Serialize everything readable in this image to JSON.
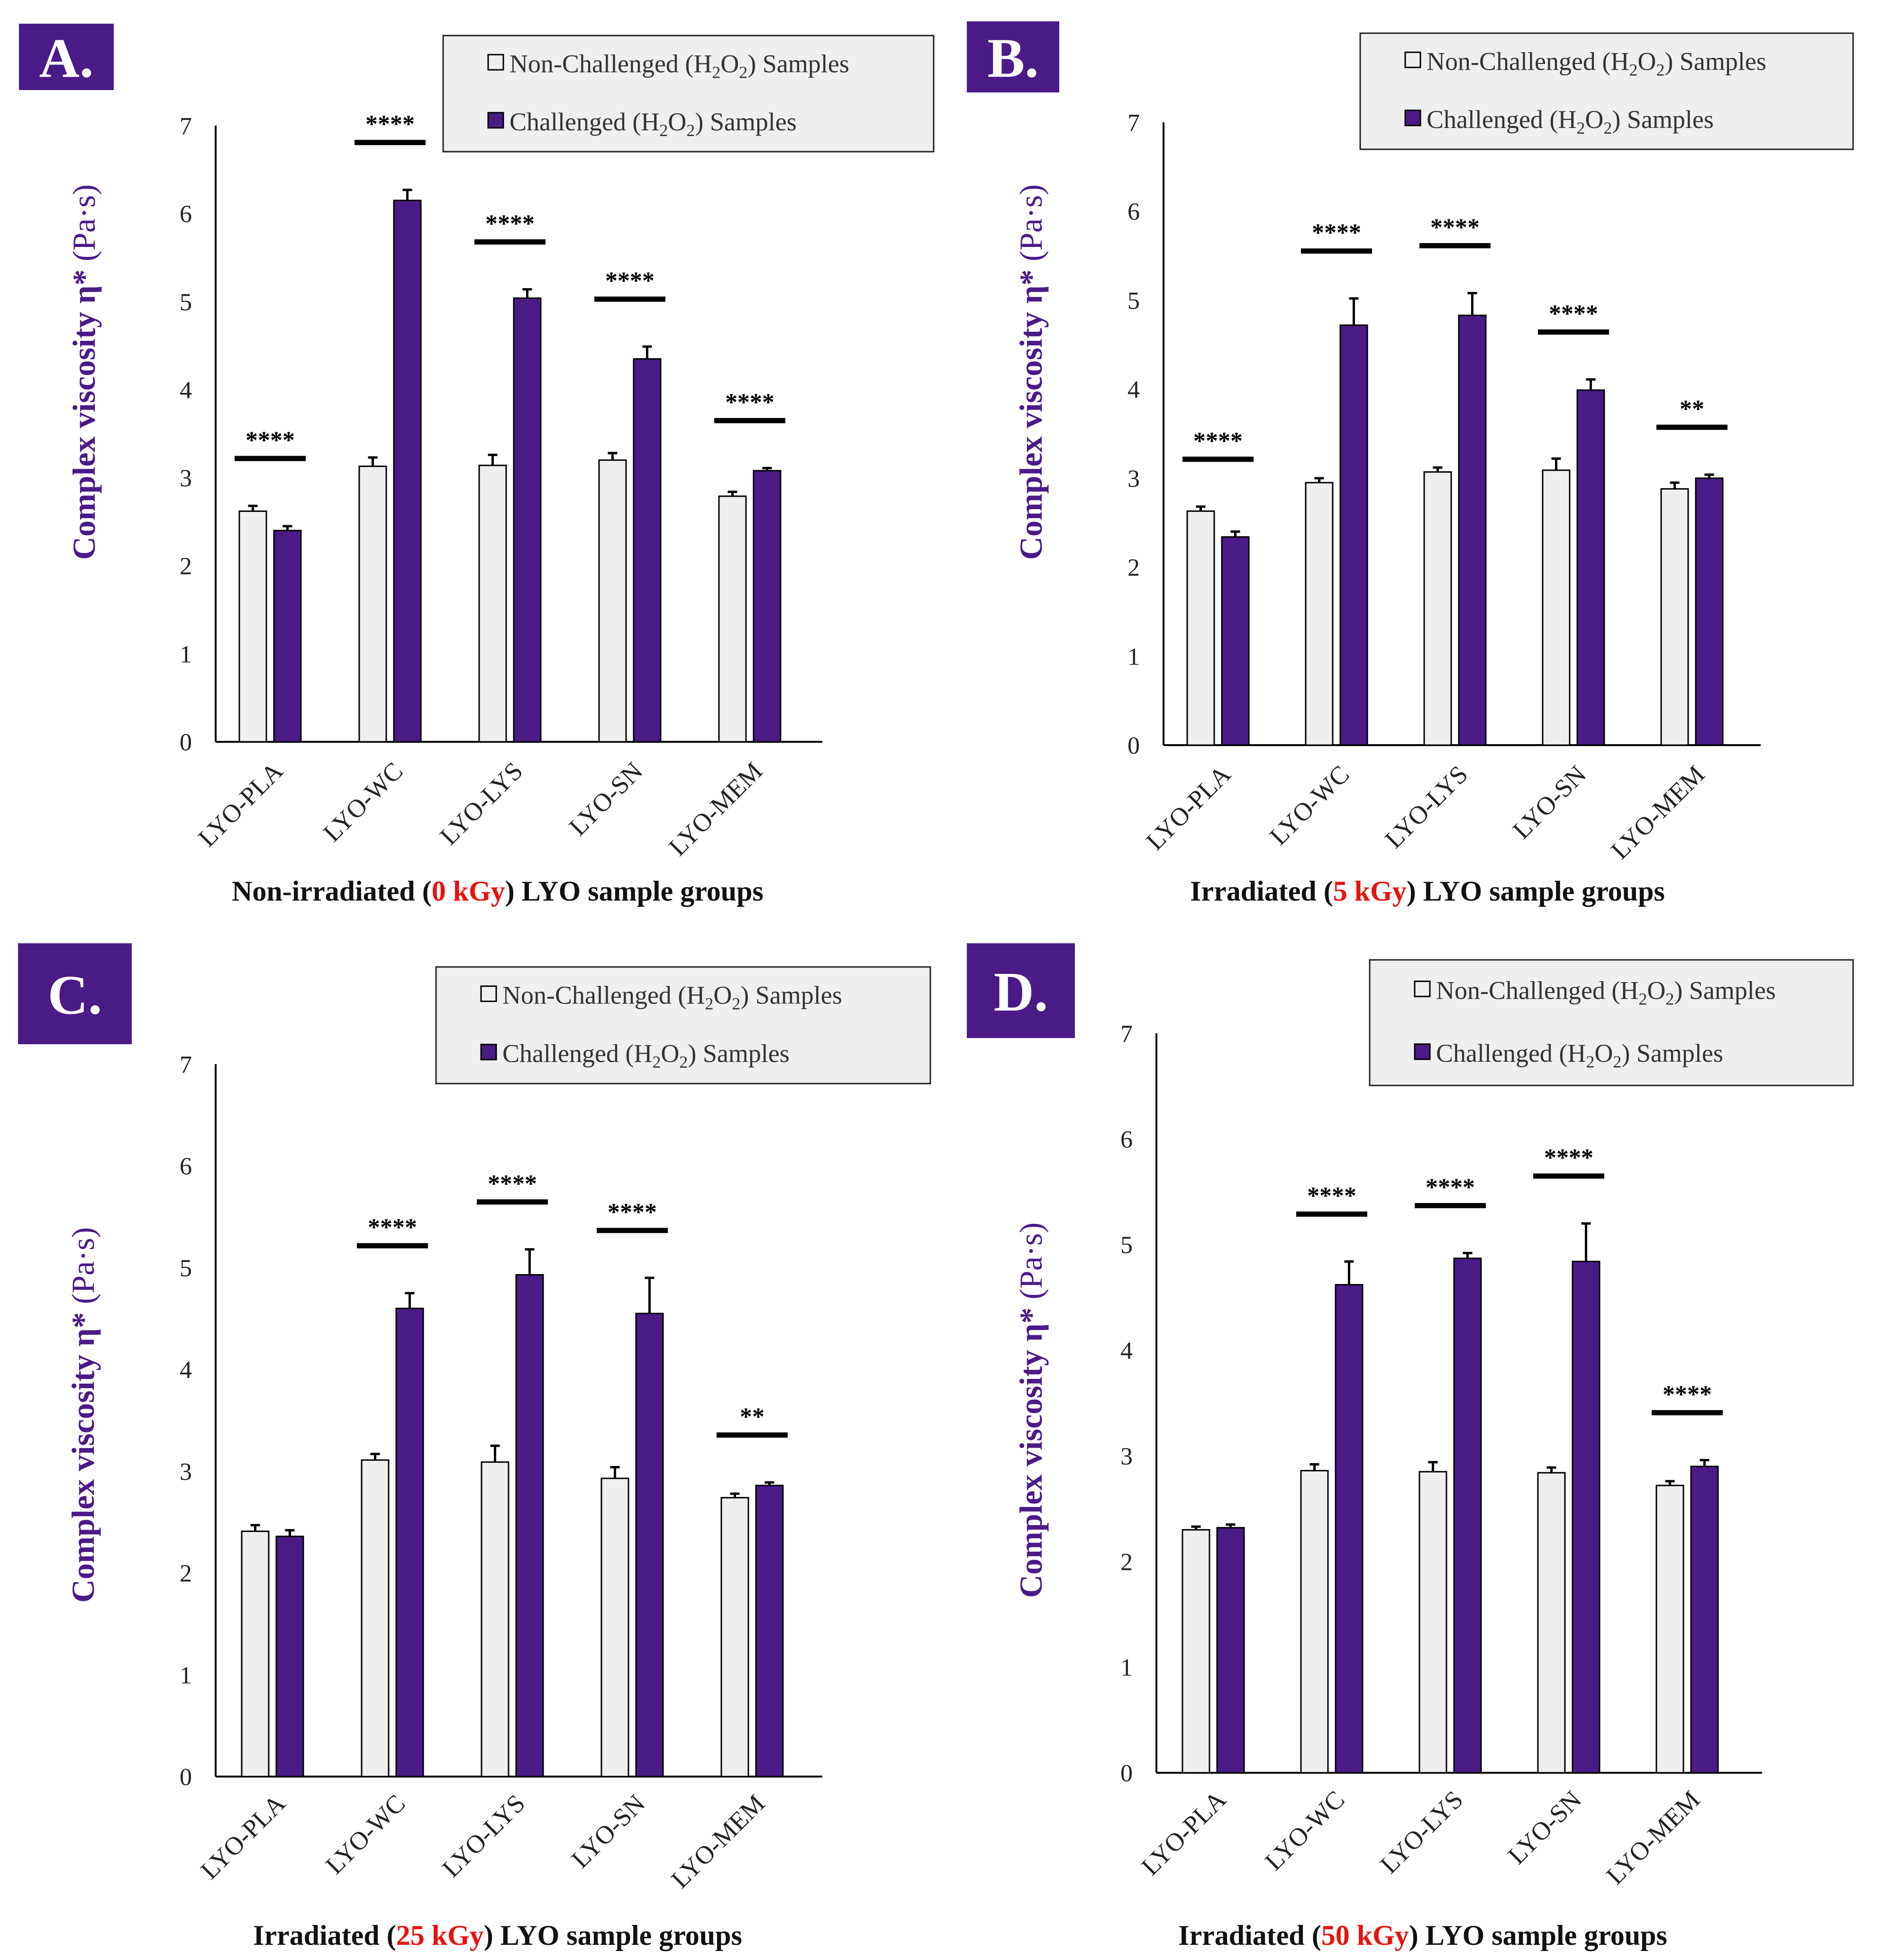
{
  "colors": {
    "non_challenged": "#EFEFEF",
    "challenged": "#4A1B87",
    "panel_badge": "#4A1B87",
    "ylabel": "#4A1B87",
    "dose_highlight": "#E8120C",
    "legend_bg": "#EFEFEF"
  },
  "chart_data": [
    {
      "type": "bar",
      "panel_label": "A.",
      "categories": [
        "LYO-PLA",
        "LYO-WC",
        "LYO-LYS",
        "LYO-SN",
        "LYO-MEM"
      ],
      "series": [
        {
          "name": "Non-Challenged (H2O2) Samples",
          "values": [
            2.62,
            3.13,
            3.14,
            3.2,
            2.79
          ],
          "errors": [
            0.06,
            0.1,
            0.12,
            0.08,
            0.05
          ]
        },
        {
          "name": "Challenged (H2O2) Samples",
          "values": [
            2.4,
            6.15,
            5.04,
            4.35,
            3.08
          ],
          "errors": [
            0.05,
            0.12,
            0.1,
            0.14,
            0.03
          ]
        }
      ],
      "significance": [
        "****",
        "****",
        "****",
        "****",
        "****"
      ],
      "ylabel_main": "Complex viscosity η*",
      "ylabel_unit": "(Pa·s)",
      "xlabel": {
        "prefix": "Non-irradiated (",
        "dose": "0 kGy",
        "suffix": ") LYO sample groups"
      },
      "ylim": [
        0,
        7
      ],
      "yticks": [
        0,
        1,
        2,
        3,
        4,
        5,
        6,
        7
      ],
      "legend": {
        "non_challenged": "Non-Challenged",
        "challenged": "Challenged",
        "formula": "(H2O2)",
        "suffix": "Samples",
        "position": "top-right"
      }
    },
    {
      "type": "bar",
      "panel_label": "B.",
      "categories": [
        "LYO-PLA",
        "LYO-WC",
        "LYO-LYS",
        "LYO-SN",
        "LYO-MEM"
      ],
      "series": [
        {
          "name": "Non-Challenged (H2O2) Samples",
          "values": [
            2.63,
            2.95,
            3.07,
            3.09,
            2.88
          ],
          "errors": [
            0.05,
            0.05,
            0.05,
            0.13,
            0.07
          ]
        },
        {
          "name": "Challenged (H2O2) Samples",
          "values": [
            2.34,
            4.72,
            4.83,
            3.99,
            3.0
          ],
          "errors": [
            0.06,
            0.3,
            0.25,
            0.12,
            0.04
          ]
        }
      ],
      "significance": [
        "****",
        "****",
        "****",
        "****",
        "**"
      ],
      "ylabel_main": "Complex viscosity η*",
      "ylabel_unit": "(Pa·s)",
      "xlabel": {
        "prefix": "Irradiated (",
        "dose": "5 kGy",
        "suffix": ") LYO sample groups"
      },
      "ylim": [
        0,
        7
      ],
      "yticks": [
        0,
        1,
        2,
        3,
        4,
        5,
        6,
        7
      ],
      "legend": {
        "non_challenged": "Non-Challenged",
        "challenged": "Challenged",
        "formula": "(H2O2)",
        "suffix": "Samples",
        "position": "top-right"
      }
    },
    {
      "type": "bar",
      "panel_label": "C.",
      "categories": [
        "LYO-PLA",
        "LYO-WC",
        "LYO-LYS",
        "LYO-SN",
        "LYO-MEM"
      ],
      "series": [
        {
          "name": "Non-Challenged (H2O2) Samples",
          "values": [
            2.41,
            3.11,
            3.09,
            2.93,
            2.74
          ],
          "errors": [
            0.06,
            0.06,
            0.16,
            0.11,
            0.04
          ]
        },
        {
          "name": "Challenged (H2O2) Samples",
          "values": [
            2.36,
            4.6,
            4.93,
            4.55,
            2.86
          ],
          "errors": [
            0.06,
            0.15,
            0.25,
            0.35,
            0.03
          ]
        }
      ],
      "significance": [
        "",
        "****",
        "****",
        "****",
        "**"
      ],
      "ylabel_main": "Complex viscosity η*",
      "ylabel_unit": "(Pa·s)",
      "xlabel": {
        "prefix": "Irradiated (",
        "dose": "25 kGy",
        "suffix": ") LYO sample groups"
      },
      "ylim": [
        0,
        7
      ],
      "yticks": [
        0,
        1,
        2,
        3,
        4,
        5,
        6,
        7
      ],
      "legend": {
        "non_challenged": "Non-Challenged",
        "challenged": "Challenged",
        "formula": "(H2O2)",
        "suffix": "Samples",
        "position": "top-right"
      }
    },
    {
      "type": "bar",
      "panel_label": "D.",
      "categories": [
        "LYO-PLA",
        "LYO-WC",
        "LYO-LYS",
        "LYO-SN",
        "LYO-MEM"
      ],
      "series": [
        {
          "name": "Non-Challenged (H2O2) Samples",
          "values": [
            2.3,
            2.86,
            2.85,
            2.84,
            2.72
          ],
          "errors": [
            0.03,
            0.06,
            0.09,
            0.05,
            0.04
          ]
        },
        {
          "name": "Challenged (H2O2) Samples",
          "values": [
            2.32,
            4.62,
            4.87,
            4.84,
            2.9
          ],
          "errors": [
            0.03,
            0.22,
            0.05,
            0.36,
            0.06
          ]
        }
      ],
      "significance": [
        "",
        "****",
        "****",
        "****",
        "****"
      ],
      "ylabel_main": "Complex viscosity η*",
      "ylabel_unit": "(Pa·s)",
      "xlabel": {
        "prefix": "Irradiated (",
        "dose": "50 kGy",
        "suffix": ") LYO sample groups"
      },
      "ylim": [
        0,
        7
      ],
      "yticks": [
        0,
        1,
        2,
        3,
        4,
        5,
        6,
        7
      ],
      "legend": {
        "non_challenged": "Non-Challenged",
        "challenged": "Challenged",
        "formula": "(H2O2)",
        "suffix": "Samples",
        "position": "top-right"
      }
    }
  ]
}
